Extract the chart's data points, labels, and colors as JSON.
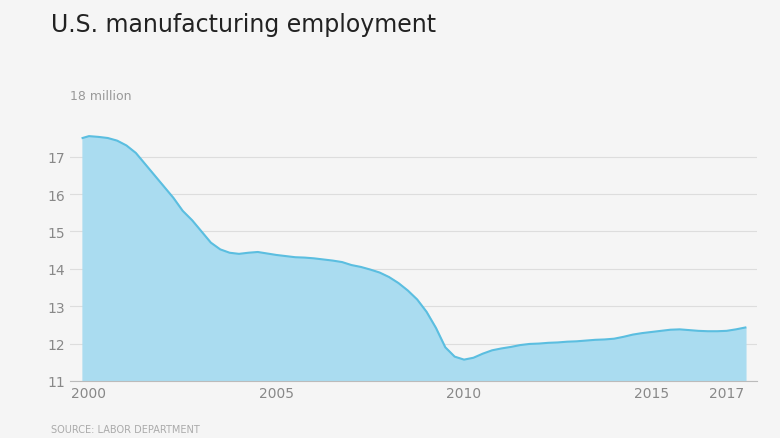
{
  "title": "U.S. manufacturing employment",
  "subtitle": "18 million",
  "source": "SOURCE: LABOR DEPARTMENT",
  "background_color": "#f5f5f5",
  "plot_bg_color": "#f5f5f5",
  "line_color": "#5bbee0",
  "fill_color": "#aadcf0",
  "ylim": [
    11,
    18.4
  ],
  "yticks": [
    11,
    12,
    13,
    14,
    15,
    16,
    17
  ],
  "xticks": [
    2000,
    2005,
    2010,
    2015,
    2017
  ],
  "xlim": [
    1999.5,
    2017.8
  ],
  "data": {
    "years": [
      1999.83,
      2000.0,
      2000.25,
      2000.5,
      2000.75,
      2001.0,
      2001.25,
      2001.5,
      2001.75,
      2002.0,
      2002.25,
      2002.5,
      2002.75,
      2003.0,
      2003.25,
      2003.5,
      2003.75,
      2004.0,
      2004.25,
      2004.5,
      2004.75,
      2005.0,
      2005.25,
      2005.5,
      2005.75,
      2006.0,
      2006.25,
      2006.5,
      2006.75,
      2007.0,
      2007.25,
      2007.5,
      2007.75,
      2008.0,
      2008.25,
      2008.5,
      2008.75,
      2009.0,
      2009.25,
      2009.5,
      2009.75,
      2010.0,
      2010.25,
      2010.5,
      2010.75,
      2011.0,
      2011.25,
      2011.5,
      2011.75,
      2012.0,
      2012.25,
      2012.5,
      2012.75,
      2013.0,
      2013.25,
      2013.5,
      2013.75,
      2014.0,
      2014.25,
      2014.5,
      2014.75,
      2015.0,
      2015.25,
      2015.5,
      2015.75,
      2016.0,
      2016.25,
      2016.5,
      2016.75,
      2017.0,
      2017.25,
      2017.5
    ],
    "values": [
      17.5,
      17.55,
      17.53,
      17.5,
      17.43,
      17.3,
      17.1,
      16.8,
      16.5,
      16.2,
      15.9,
      15.55,
      15.3,
      15.0,
      14.7,
      14.52,
      14.43,
      14.4,
      14.43,
      14.45,
      14.41,
      14.37,
      14.34,
      14.31,
      14.3,
      14.28,
      14.25,
      14.22,
      14.18,
      14.1,
      14.05,
      13.98,
      13.9,
      13.78,
      13.62,
      13.42,
      13.18,
      12.85,
      12.42,
      11.9,
      11.65,
      11.57,
      11.62,
      11.73,
      11.82,
      11.87,
      11.91,
      11.96,
      11.99,
      12.0,
      12.02,
      12.03,
      12.05,
      12.06,
      12.08,
      12.1,
      12.11,
      12.13,
      12.18,
      12.24,
      12.28,
      12.31,
      12.34,
      12.37,
      12.38,
      12.36,
      12.34,
      12.33,
      12.33,
      12.34,
      12.38,
      12.43
    ]
  }
}
